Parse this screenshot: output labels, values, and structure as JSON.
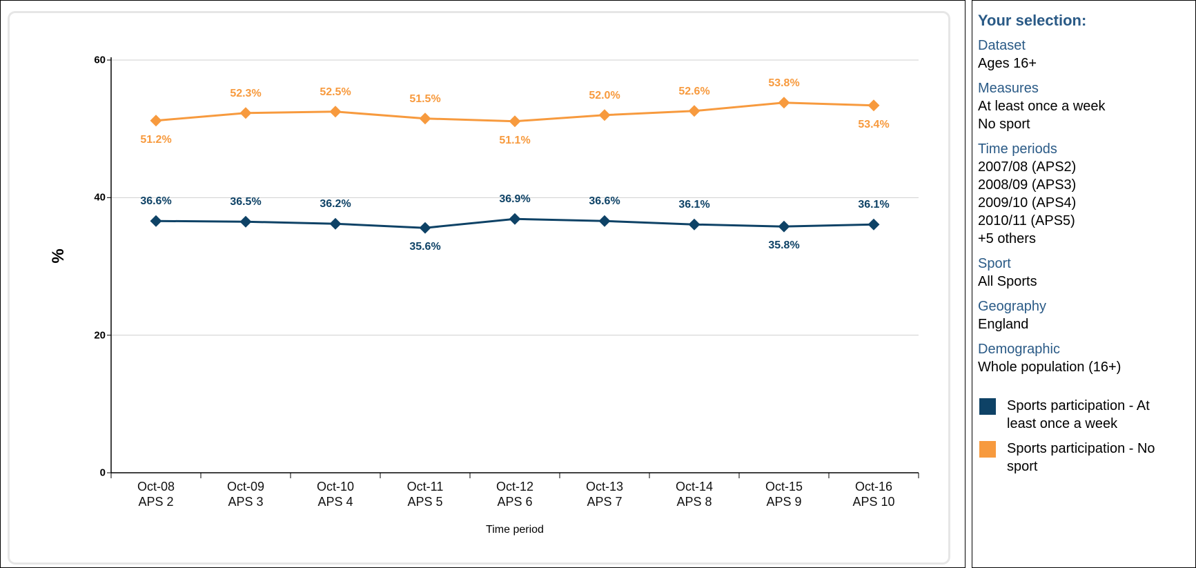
{
  "chart_data": {
    "type": "line",
    "categories": [
      "Oct-08\nAPS 2",
      "Oct-09\nAPS 3",
      "Oct-10\nAPS 4",
      "Oct-11\nAPS 5",
      "Oct-12\nAPS 6",
      "Oct-13\nAPS 7",
      "Oct-14\nAPS 8",
      "Oct-15\nAPS 9",
      "Oct-16\nAPS 10"
    ],
    "series": [
      {
        "name": "Sports participation - At least once a week",
        "color": "#0e4266",
        "values": [
          36.6,
          36.5,
          36.2,
          35.6,
          36.9,
          36.6,
          36.1,
          35.8,
          36.1
        ],
        "value_labels": [
          "36.6%",
          "36.5%",
          "36.2%",
          "35.6%",
          "36.9%",
          "36.6%",
          "36.1%",
          "35.8%",
          "36.1%"
        ]
      },
      {
        "name": "Sports participation - No sport",
        "color": "#f79a3e",
        "values": [
          51.2,
          52.3,
          52.5,
          51.5,
          51.1,
          52.0,
          52.6,
          53.8,
          53.4
        ],
        "value_labels": [
          "51.2%",
          "52.3%",
          "52.5%",
          "51.5%",
          "51.1%",
          "52.0%",
          "52.6%",
          "53.8%",
          "53.4%"
        ]
      }
    ],
    "ylabel": "%",
    "xlabel": "Time period",
    "ylim": [
      0,
      60
    ],
    "yticks": [
      0,
      20,
      40,
      60
    ],
    "grid": true
  },
  "selection": {
    "title": "Your selection:",
    "sections": [
      {
        "heading": "Dataset",
        "items": [
          "Ages 16+"
        ]
      },
      {
        "heading": "Measures",
        "items": [
          "At least once a week",
          "No sport"
        ]
      },
      {
        "heading": "Time periods",
        "items": [
          "2007/08 (APS2)",
          "2008/09 (APS3)",
          "2009/10 (APS4)",
          "2010/11 (APS5)",
          "+5 others"
        ]
      },
      {
        "heading": "Sport",
        "items": [
          "All Sports"
        ]
      },
      {
        "heading": "Geography",
        "items": [
          "England"
        ]
      },
      {
        "heading": "Demographic",
        "items": [
          "Whole population (16+)"
        ]
      }
    ]
  }
}
